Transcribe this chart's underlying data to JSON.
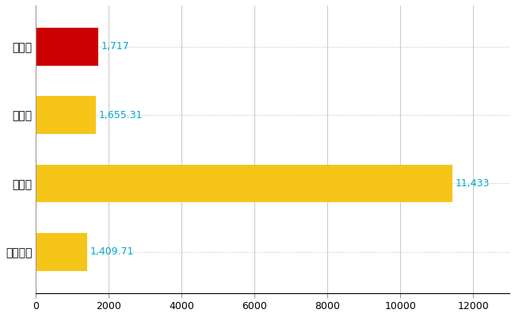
{
  "categories": [
    "島田市",
    "県平均",
    "県最大",
    "全国平均"
  ],
  "values": [
    1717,
    1655.31,
    11433,
    1409.71
  ],
  "bar_colors": [
    "#cc0000",
    "#f5c518",
    "#f5c518",
    "#f5c518"
  ],
  "value_labels": [
    "1,717",
    "1,655.31",
    "11,433",
    "1,409.71"
  ],
  "label_color": "#00aacc",
  "xlim": [
    0,
    13000
  ],
  "xticks": [
    0,
    2000,
    4000,
    6000,
    8000,
    10000,
    12000
  ],
  "grid_color": "#cccccc",
  "background_color": "#ffffff",
  "bar_height": 0.55,
  "figsize": [
    6.5,
    4.0
  ],
  "dpi": 100,
  "label_fontsize": 9,
  "tick_fontsize": 9,
  "ytick_fontsize": 10
}
